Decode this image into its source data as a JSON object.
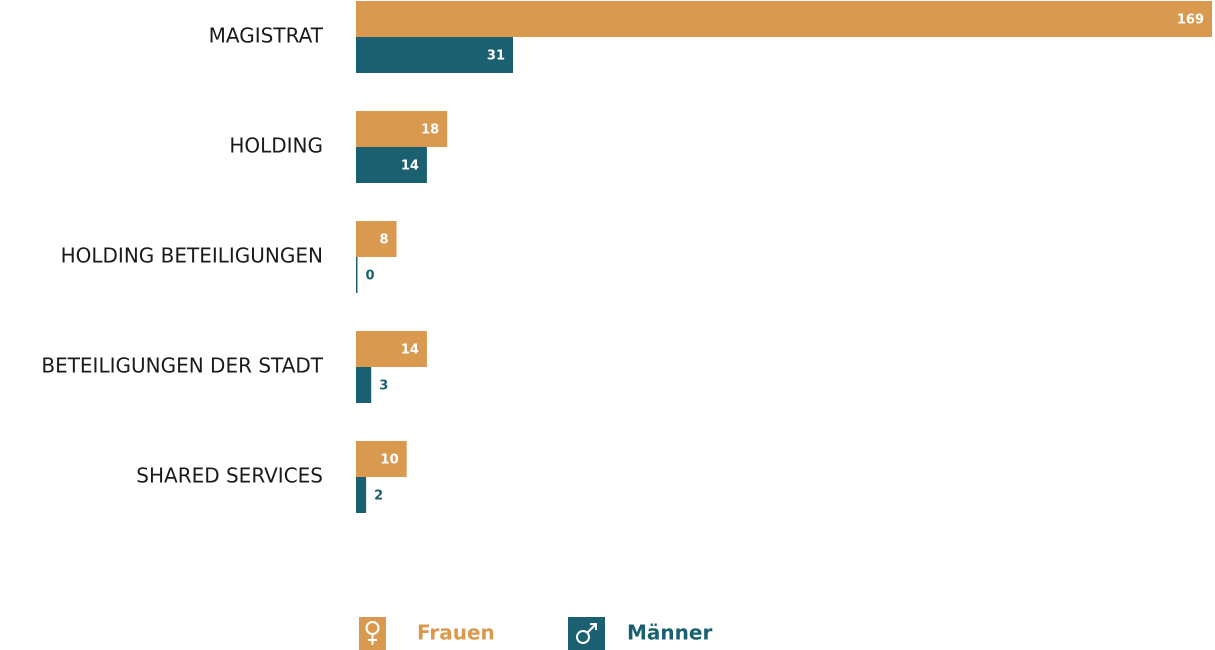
{
  "chart_data": {
    "type": "hbar",
    "categories": [
      "MAGISTRAT",
      "HOLDING",
      "HOLDING BETEILIGUNGEN",
      "BETEILIGUNGEN DER STADT",
      "SHARED SERVICES"
    ],
    "series": [
      {
        "name": "Frauen",
        "color": "#d99a50",
        "values": [
          169,
          18,
          8,
          14,
          10
        ]
      },
      {
        "name": "Männer",
        "color": "#1b6070",
        "values": [
          31,
          14,
          0,
          3,
          2
        ]
      }
    ],
    "xlim": [
      0,
      169
    ]
  }
}
